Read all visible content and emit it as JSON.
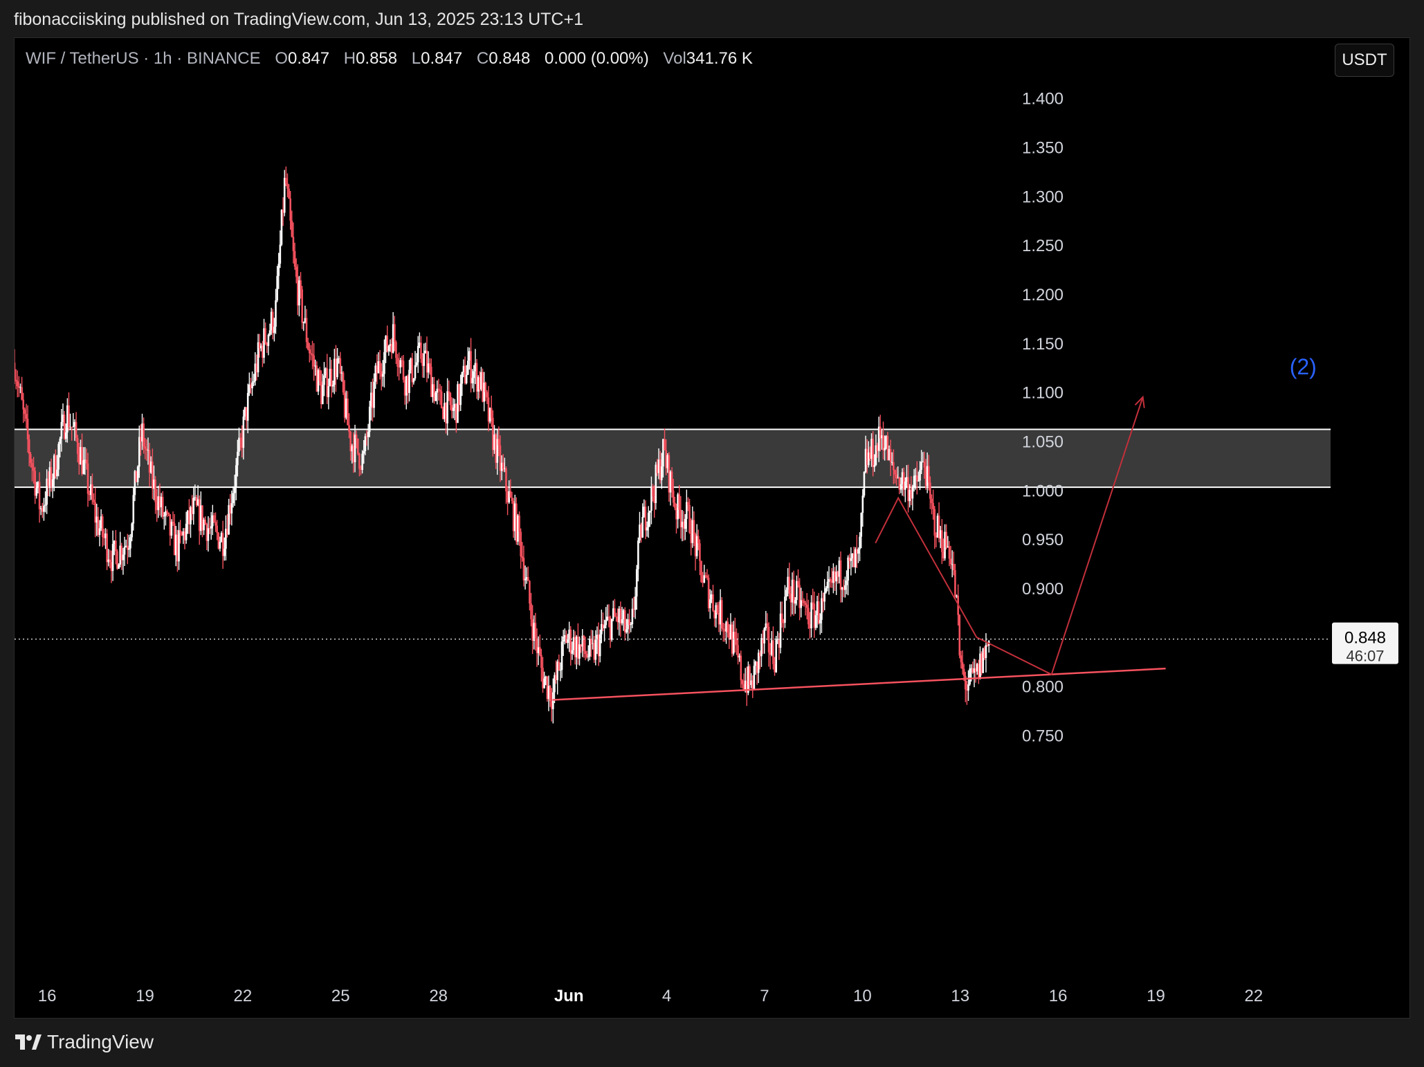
{
  "header": {
    "publish_line": "fibonacciisking published on TradingView.com, Jun 13, 2025 23:13 UTC+1"
  },
  "legend": {
    "symbol": "WIF / TetherUS · 1h · BINANCE",
    "open_label": "O",
    "open": "0.847",
    "high_label": "H",
    "high": "0.858",
    "low_label": "L",
    "low": "0.847",
    "close_label": "C",
    "close": "0.848",
    "change": "0.000 (0.00%)",
    "vol_label": "Vol",
    "volume": "341.76 K"
  },
  "currency_button": "USDT",
  "footer": {
    "brand": "TradingView"
  },
  "colors": {
    "down": "#f7525f",
    "up": "#ffffff",
    "zone_fill": "#3a3a3a",
    "zone_line": "#ffffff",
    "trendline": "#f7525f",
    "projection": "#c2303b",
    "wave_label": "#2962ff",
    "background": "#000000"
  },
  "chart_data": {
    "type": "line",
    "title": "WIF / TetherUS · 1h · BINANCE",
    "y_axis": {
      "ticks": [
        "1.400",
        "1.350",
        "1.300",
        "1.250",
        "1.200",
        "1.150",
        "1.100",
        "1.050",
        "1.000",
        "0.950",
        "0.900",
        "0.800",
        "0.750"
      ],
      "ylim": [
        0.72,
        1.44
      ]
    },
    "x_axis": {
      "ticks": [
        {
          "label": "16",
          "day": 16
        },
        {
          "label": "19",
          "day": 19
        },
        {
          "label": "22",
          "day": 22
        },
        {
          "label": "25",
          "day": 25
        },
        {
          "label": "28",
          "day": 28
        },
        {
          "label": "Jun",
          "day": 32,
          "bold": true
        },
        {
          "label": "4",
          "day": 35
        },
        {
          "label": "7",
          "day": 38
        },
        {
          "label": "10",
          "day": 41
        },
        {
          "label": "13",
          "day": 44
        },
        {
          "label": "16",
          "day": 47
        },
        {
          "label": "19",
          "day": 50
        },
        {
          "label": "22",
          "day": 53
        }
      ],
      "xlim": [
        15.0,
        55.4
      ]
    },
    "price_path": [
      [
        15.0,
        1.13
      ],
      [
        15.4,
        1.05
      ],
      [
        15.8,
        0.98
      ],
      [
        16.2,
        1.02
      ],
      [
        16.6,
        1.08
      ],
      [
        17.0,
        1.04
      ],
      [
        17.5,
        0.97
      ],
      [
        18.0,
        0.93
      ],
      [
        18.5,
        0.95
      ],
      [
        18.9,
        1.06
      ],
      [
        19.2,
        1.01
      ],
      [
        19.6,
        0.97
      ],
      [
        20.0,
        0.94
      ],
      [
        20.5,
        0.98
      ],
      [
        21.0,
        0.96
      ],
      [
        21.4,
        0.95
      ],
      [
        21.8,
        1.02
      ],
      [
        22.1,
        1.08
      ],
      [
        22.5,
        1.14
      ],
      [
        23.0,
        1.18
      ],
      [
        23.3,
        1.32
      ],
      [
        23.6,
        1.22
      ],
      [
        24.0,
        1.15
      ],
      [
        24.4,
        1.1
      ],
      [
        24.9,
        1.13
      ],
      [
        25.3,
        1.05
      ],
      [
        25.7,
        1.03
      ],
      [
        26.1,
        1.12
      ],
      [
        26.6,
        1.16
      ],
      [
        27.0,
        1.11
      ],
      [
        27.5,
        1.14
      ],
      [
        28.0,
        1.09
      ],
      [
        28.5,
        1.08
      ],
      [
        28.9,
        1.13
      ],
      [
        29.3,
        1.11
      ],
      [
        29.7,
        1.05
      ],
      [
        30.1,
        1.0
      ],
      [
        30.5,
        0.95
      ],
      [
        30.9,
        0.86
      ],
      [
        31.2,
        0.81
      ],
      [
        31.5,
        0.79
      ],
      [
        31.9,
        0.85
      ],
      [
        32.3,
        0.84
      ],
      [
        32.7,
        0.83
      ],
      [
        33.1,
        0.86
      ],
      [
        33.5,
        0.87
      ],
      [
        33.9,
        0.85
      ],
      [
        34.2,
        0.96
      ],
      [
        34.6,
        1.0
      ],
      [
        34.9,
        1.04
      ],
      [
        35.3,
        0.98
      ],
      [
        35.7,
        0.97
      ],
      [
        36.1,
        0.91
      ],
      [
        36.5,
        0.88
      ],
      [
        36.9,
        0.86
      ],
      [
        37.3,
        0.81
      ],
      [
        37.6,
        0.8
      ],
      [
        38.0,
        0.85
      ],
      [
        38.3,
        0.83
      ],
      [
        38.7,
        0.9
      ],
      [
        39.0,
        0.89
      ],
      [
        39.4,
        0.87
      ],
      [
        39.8,
        0.88
      ],
      [
        40.2,
        0.91
      ],
      [
        40.6,
        0.92
      ],
      [
        40.9,
        0.93
      ],
      [
        41.1,
        1.03
      ],
      [
        41.4,
        1.04
      ],
      [
        41.6,
        1.06
      ],
      [
        41.9,
        1.02
      ],
      [
        42.2,
        1.01
      ],
      [
        42.6,
        1.0
      ],
      [
        42.9,
        1.03
      ],
      [
        43.1,
        0.98
      ],
      [
        43.4,
        0.95
      ],
      [
        43.7,
        0.94
      ],
      [
        43.9,
        0.88
      ],
      [
        44.0,
        0.82
      ],
      [
        44.2,
        0.8
      ],
      [
        44.5,
        0.81
      ],
      [
        44.7,
        0.83
      ],
      [
        44.9,
        0.848
      ]
    ],
    "annotations": {
      "resistance_zone": {
        "top": 1.062,
        "bottom": 1.003
      },
      "last_price": {
        "value": "0.848",
        "countdown": "46:07",
        "y": 0.848
      },
      "support_trendline": [
        [
          31.5,
          0.786
        ],
        [
          50.3,
          0.818
        ]
      ],
      "projection_path": [
        [
          41.4,
          0.946
        ],
        [
          42.1,
          0.992
        ],
        [
          44.5,
          0.85
        ],
        [
          46.8,
          0.812
        ],
        [
          49.6,
          1.095
        ]
      ],
      "wave_label": {
        "text": "(2)",
        "x": 54.1,
        "y": 1.118
      }
    }
  }
}
